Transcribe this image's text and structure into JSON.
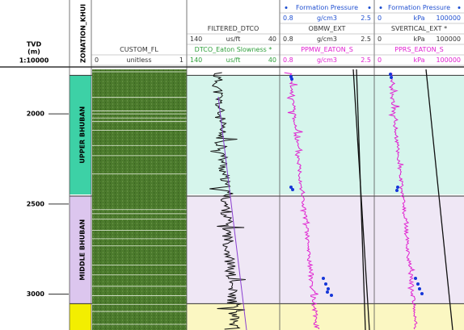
{
  "depth_track": {
    "title": "TVD",
    "unit": "(m)",
    "scale": "1:10000",
    "ticks": [
      2000,
      2500,
      3000
    ],
    "lim": [
      1753,
      3199
    ]
  },
  "zonation_track": {
    "title": "ZONATION_KHUI",
    "zones": [
      {
        "name": "UPPER BHUBAN",
        "top": 1786,
        "base": 2447,
        "color": "#3dd1a6",
        "tint": "#d6f5ec"
      },
      {
        "name": "MIDDLE BHUBAN",
        "top": 2456,
        "base": 3053,
        "color": "#dcc6ee",
        "tint": "#efe7f5"
      },
      {
        "top": 3053,
        "base": 3199,
        "color": "#f3ee00",
        "tint": "#fbf7c2"
      }
    ]
  },
  "tracks": [
    {
      "rows": [
        {
          "text": "CUSTOM_FL",
          "color": "#333333"
        },
        {
          "min": "0",
          "unit": "unitless",
          "max": "1",
          "color": "#333333"
        }
      ]
    },
    {
      "rows": [
        {
          "text": "FILTERED_DTCO",
          "color": "#333333"
        },
        {
          "min": "140",
          "unit": "us/ft",
          "max": "40",
          "color": "#333333"
        },
        {
          "text": "DTCO_Eaton Slowness *",
          "color": "#2e9e3a"
        },
        {
          "min": "140",
          "unit": "us/ft",
          "max": "40",
          "color": "#2e9e3a"
        }
      ]
    },
    {
      "rows": [
        {
          "text": "Formation Pressure",
          "color": "#1f4fd0",
          "dots": true
        },
        {
          "min": "0.8",
          "unit": "g/cm3",
          "max": "2.5",
          "color": "#1f4fd0"
        },
        {
          "text": "OBMW_EXT",
          "color": "#333333"
        },
        {
          "min": "0.8",
          "unit": "g/cm3",
          "max": "2.5",
          "color": "#333333"
        },
        {
          "text": "PPMW_EATON_S",
          "color": "#e020d0"
        },
        {
          "min": "0.8",
          "unit": "g/cm3",
          "max": "2.5",
          "color": "#e020d0"
        }
      ]
    },
    {
      "rows": [
        {
          "text": "Formation Pressure",
          "color": "#1f4fd0",
          "dots": true
        },
        {
          "min": "0",
          "unit": "kPa",
          "max": "100000",
          "color": "#1f4fd0"
        },
        {
          "text": "SVERTICAL_EXT *",
          "color": "#333333"
        },
        {
          "min": "0",
          "unit": "kPa",
          "max": "100000",
          "color": "#333333"
        },
        {
          "text": "PPRS_EATON_S",
          "color": "#e020d0"
        },
        {
          "min": "0",
          "unit": "kPa",
          "max": "100000",
          "color": "#e020d0"
        }
      ]
    }
  ]
}
